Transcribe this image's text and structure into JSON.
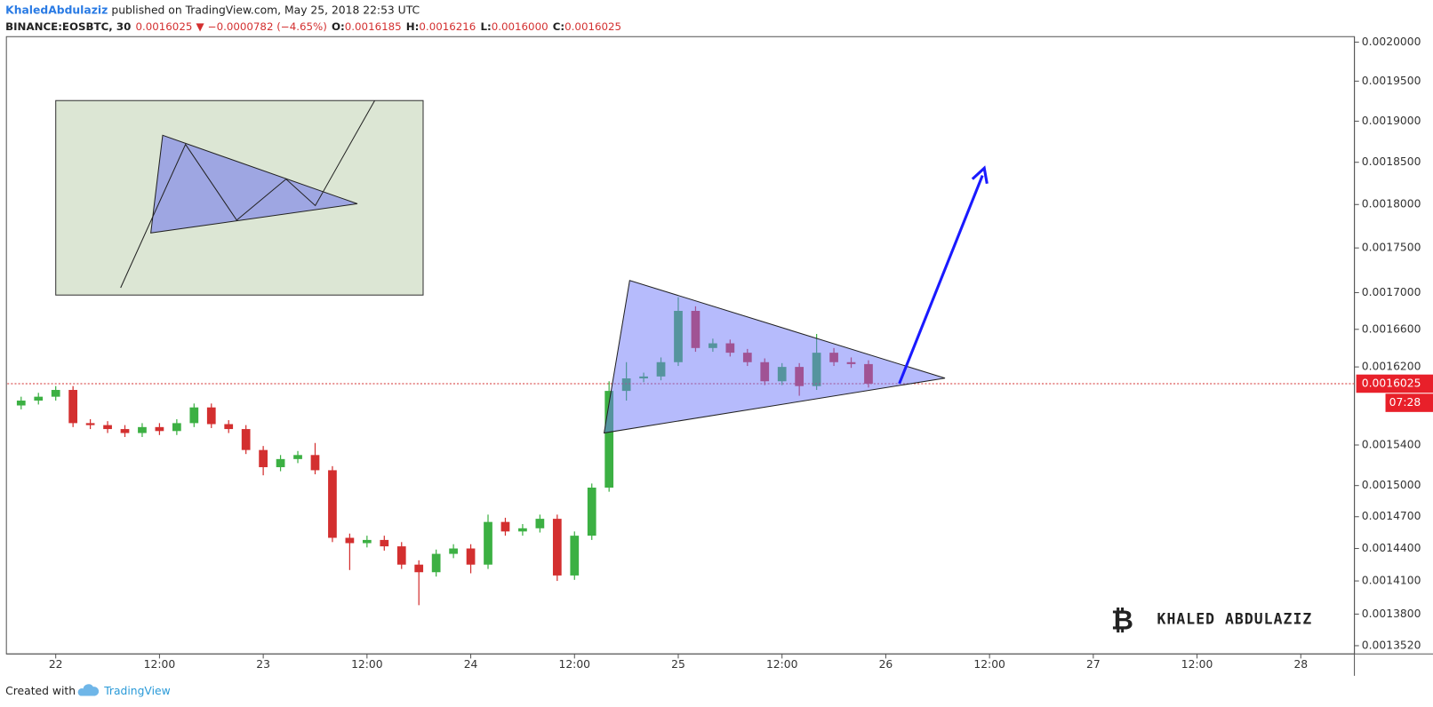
{
  "header": {
    "author": "KhaledAbdulaziz",
    "published": "published on TradingView.com, May 25, 2018 22:53 UTC",
    "symbol": "BINANCE:EOSBTC, 30",
    "price": "0.0016025",
    "arrow": "▼",
    "change": "−0.0000782 (−4.65%)",
    "ohlc": [
      {
        "label": "O:",
        "value": "0.0016185"
      },
      {
        "label": "H:",
        "value": "0.0016216"
      },
      {
        "label": "L:",
        "value": "0.0016000"
      },
      {
        "label": "C:",
        "value": "0.0016025"
      }
    ]
  },
  "watermark": {
    "logo": "₿",
    "name": "KHALED ABDULAZIZ"
  },
  "footer": {
    "created": "Created with",
    "brand": "TradingView"
  },
  "chart_data": {
    "type": "candlestick",
    "log_scale": true,
    "up_color": "#3cb043",
    "down_color": "#d32f2f",
    "last_price": 0.0016025,
    "countdown": "07:28",
    "xlim": [
      -5.6,
      150.2
    ],
    "ylim": [
      0.0013448,
      0.0020071
    ],
    "xticks": [
      {
        "value": 0,
        "label": "22"
      },
      {
        "value": 12,
        "label": "12:00"
      },
      {
        "value": 24,
        "label": "23"
      },
      {
        "value": 36,
        "label": "12:00"
      },
      {
        "value": 48,
        "label": "24"
      },
      {
        "value": 60,
        "label": "12:00"
      },
      {
        "value": 72,
        "label": "25"
      },
      {
        "value": 84,
        "label": "12:00"
      },
      {
        "value": 96,
        "label": "26"
      },
      {
        "value": 108,
        "label": "12:00"
      },
      {
        "value": 120,
        "label": "27"
      },
      {
        "value": 132,
        "label": "12:00"
      },
      {
        "value": 144,
        "label": "28"
      }
    ],
    "yticks": [
      {
        "value": 0.002,
        "label": "0.0020000"
      },
      {
        "value": 0.00195,
        "label": "0.0019500"
      },
      {
        "value": 0.0019,
        "label": "0.0019000"
      },
      {
        "value": 0.00185,
        "label": "0.0018500"
      },
      {
        "value": 0.0018,
        "label": "0.0018000"
      },
      {
        "value": 0.00175,
        "label": "0.0017500"
      },
      {
        "value": 0.0017,
        "label": "0.0017000"
      },
      {
        "value": 0.00166,
        "label": "0.0016600"
      },
      {
        "value": 0.00162,
        "label": "0.0016200"
      },
      {
        "value": 0.00154,
        "label": "0.0015400"
      },
      {
        "value": 0.0015,
        "label": "0.0015000"
      },
      {
        "value": 0.00147,
        "label": "0.0014700"
      },
      {
        "value": 0.00144,
        "label": "0.0014400"
      },
      {
        "value": 0.00141,
        "label": "0.0014100"
      },
      {
        "value": 0.00138,
        "label": "0.0013800"
      },
      {
        "value": 0.001352,
        "label": "0.0013520"
      }
    ],
    "x": [
      -4,
      -2,
      0,
      2,
      4,
      6,
      8,
      10,
      12,
      14,
      16,
      18,
      20,
      22,
      24,
      26,
      28,
      30,
      32,
      34,
      36,
      38,
      40,
      42,
      44,
      46,
      48,
      50,
      52,
      54,
      56,
      58,
      60,
      62,
      64,
      66,
      68,
      70,
      72,
      74,
      76,
      78,
      80,
      82,
      84,
      86,
      88,
      90,
      92,
      94
    ],
    "open": [
      0.00158,
      0.001585,
      0.001589,
      0.001596,
      0.001562,
      0.00156,
      0.001556,
      0.001552,
      0.001558,
      0.001554,
      0.001562,
      0.001578,
      0.001561,
      0.001556,
      0.001535,
      0.001518,
      0.001526,
      0.00153,
      0.001515,
      0.00145,
      0.001445,
      0.001448,
      0.001442,
      0.001425,
      0.001418,
      0.001435,
      0.00144,
      0.001425,
      0.001465,
      0.001456,
      0.001459,
      0.001468,
      0.001415,
      0.001452,
      0.001498,
      0.001595,
      0.001608,
      0.00161,
      0.001625,
      0.00168,
      0.00164,
      0.001645,
      0.001635,
      0.001625,
      0.001605,
      0.00162,
      0.0016,
      0.001635,
      0.001625,
      0.001623
    ],
    "high": [
      0.001589,
      0.001593,
      0.0016,
      0.0016,
      0.001566,
      0.001564,
      0.00156,
      0.001562,
      0.001562,
      0.001566,
      0.001582,
      0.001582,
      0.001565,
      0.00156,
      0.001539,
      0.00153,
      0.001534,
      0.001542,
      0.001519,
      0.001454,
      0.001452,
      0.001452,
      0.001446,
      0.001429,
      0.001439,
      0.001444,
      0.001444,
      0.001472,
      0.001469,
      0.001463,
      0.001472,
      0.001472,
      0.001456,
      0.001502,
      0.001605,
      0.001625,
      0.001614,
      0.00163,
      0.001695,
      0.001685,
      0.00165,
      0.001649,
      0.001639,
      0.001629,
      0.001624,
      0.001624,
      0.001655,
      0.00164,
      0.00163,
      0.001627
    ],
    "low": [
      0.001576,
      0.001581,
      0.001585,
      0.001558,
      0.001556,
      0.001552,
      0.001548,
      0.001548,
      0.00155,
      0.00155,
      0.001558,
      0.001557,
      0.001552,
      0.001531,
      0.00151,
      0.001514,
      0.001522,
      0.001511,
      0.001446,
      0.00142,
      0.001441,
      0.001438,
      0.001421,
      0.001388,
      0.001414,
      0.001431,
      0.001417,
      0.001421,
      0.001452,
      0.001452,
      0.001455,
      0.00141,
      0.001411,
      0.001448,
      0.001494,
      0.001585,
      0.001604,
      0.001606,
      0.001621,
      0.001636,
      0.001636,
      0.001631,
      0.001621,
      0.001601,
      0.001601,
      0.00159,
      0.001596,
      0.001621,
      0.001619,
      0.0015985
    ],
    "close": [
      0.001585,
      0.001589,
      0.001596,
      0.001562,
      0.00156,
      0.001556,
      0.001552,
      0.001558,
      0.001554,
      0.001562,
      0.001578,
      0.001561,
      0.001556,
      0.001535,
      0.001518,
      0.001526,
      0.00153,
      0.001515,
      0.00145,
      0.001445,
      0.001448,
      0.001442,
      0.001425,
      0.001418,
      0.001435,
      0.00144,
      0.001425,
      0.001465,
      0.001456,
      0.001459,
      0.001468,
      0.001415,
      0.001452,
      0.001498,
      0.001595,
      0.001608,
      0.00161,
      0.001625,
      0.00168,
      0.00164,
      0.001645,
      0.001635,
      0.001625,
      0.001605,
      0.00162,
      0.0016,
      0.001635,
      0.001625,
      0.001623,
      0.0016025
    ]
  }
}
